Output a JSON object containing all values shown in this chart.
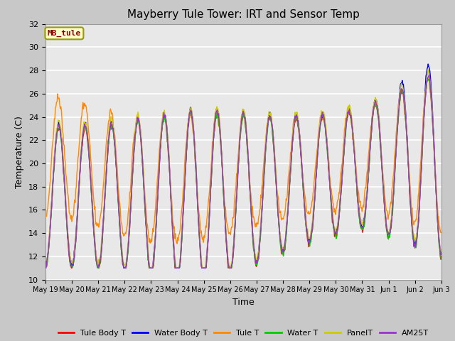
{
  "title": "Mayberry Tule Tower: IRT and Sensor Temp",
  "xlabel": "Time",
  "ylabel": "Temperature (C)",
  "ylim": [
    10,
    32
  ],
  "yticks": [
    10,
    12,
    14,
    16,
    18,
    20,
    22,
    24,
    26,
    28,
    30,
    32
  ],
  "legend_entries": [
    "Tule Body T",
    "Water Body T",
    "Tule T",
    "Water T",
    "PanelT",
    "AM25T"
  ],
  "line_colors": [
    "#ff0000",
    "#0000ff",
    "#ff8800",
    "#00cc00",
    "#cccc00",
    "#9933cc"
  ],
  "watermark_text": "MB_tule",
  "watermark_bg": "#ffffcc",
  "watermark_border": "#cccc00",
  "watermark_text_color": "#880000",
  "xtick_labels": [
    "May 19",
    "May 20",
    "May 21",
    "May 22",
    "May 23",
    "May 24",
    "May 25",
    "May 26",
    "May 27",
    "May 28",
    "May 29",
    "May 30",
    "May 31",
    "Jun 1",
    "Jun 2",
    "Jun 3"
  ],
  "xtick_positions": [
    0,
    1,
    2,
    3,
    4,
    5,
    6,
    7,
    8,
    9,
    10,
    11,
    12,
    13,
    14,
    15
  ],
  "t_start": 0,
  "t_end": 15,
  "n_points": 720
}
